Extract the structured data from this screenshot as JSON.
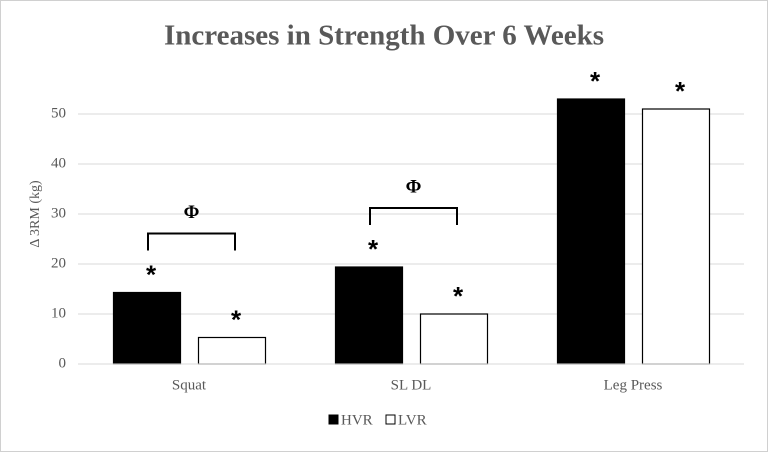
{
  "chart_data": {
    "type": "bar",
    "title": "Increases in Strength Over 6 Weeks",
    "y_label": "Δ 3RM (kg)",
    "categories": [
      "Squat",
      "SL DL",
      "Leg Press"
    ],
    "series": [
      {
        "name": "HVR",
        "color": "#000000",
        "values": [
          14.3,
          19.4,
          53
        ],
        "markers": [
          "*",
          "*",
          "*"
        ]
      },
      {
        "name": "LVR",
        "color": "#ffffff",
        "values": [
          5.3,
          10,
          51
        ],
        "markers": [
          "*",
          "*",
          "*"
        ]
      }
    ],
    "bracket_labels": [
      "Φ",
      "Φ",
      null
    ],
    "ylim": [
      0,
      60
    ],
    "yticks": [
      0,
      10,
      20,
      30,
      40,
      50
    ],
    "grid": true,
    "legend": "bottom"
  }
}
